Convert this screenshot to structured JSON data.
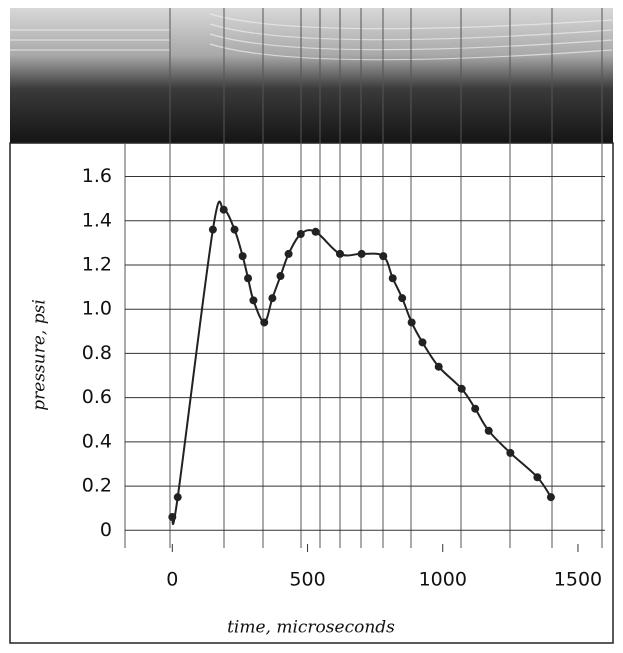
{
  "chart_data": {
    "type": "line",
    "x_label": "time, microseconds",
    "y_label": "pressure, psi",
    "x": [
      0,
      20,
      150,
      190,
      230,
      260,
      280,
      300,
      340,
      370,
      400,
      430,
      475,
      530,
      620,
      700,
      780,
      815,
      850,
      885,
      925,
      985,
      1070,
      1120,
      1170,
      1250,
      1350,
      1400
    ],
    "series": [
      {
        "color": "#222222",
        "values": [
          0.06,
          0.15,
          1.36,
          1.45,
          1.36,
          1.24,
          1.14,
          1.04,
          0.94,
          1.05,
          1.15,
          1.25,
          1.34,
          1.35,
          1.25,
          1.25,
          1.24,
          1.14,
          1.05,
          0.94,
          0.85,
          0.74,
          0.64,
          0.55,
          0.45,
          0.35,
          0.24,
          0.15
        ]
      }
    ],
    "xlim": [
      -175,
      1600
    ],
    "ylim": [
      -0.08,
      1.72
    ],
    "xticks": [
      0,
      500,
      1000,
      1500
    ],
    "yticks": [
      0,
      0.2,
      0.4,
      0.6,
      0.8,
      {
        "value": 1,
        "label": "1.0"
      },
      1.2,
      1.4,
      1.6
    ],
    "grid": true
  }
}
